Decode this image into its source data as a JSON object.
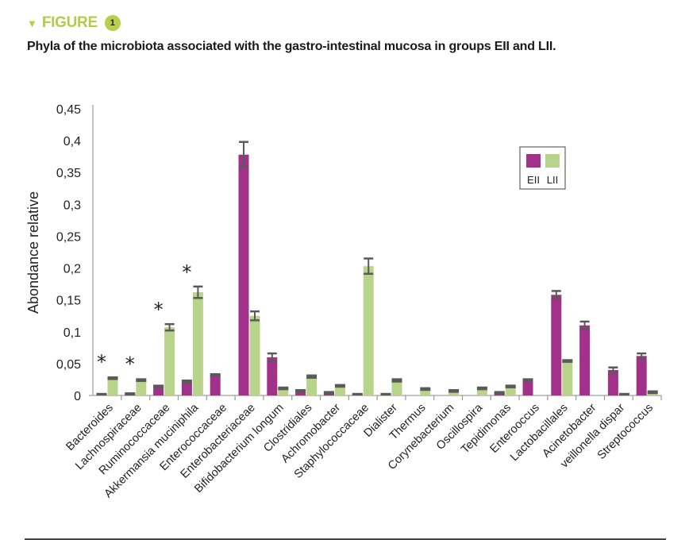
{
  "figure": {
    "label": "FIGURE",
    "number": "1",
    "marker_icon": "triangle-down-icon",
    "accent_color": "#b5c94a"
  },
  "chart_data": {
    "type": "bar",
    "title": "Phyla of the microbiota associated with the gastro-intestinal mucosa in groups EII and LII.",
    "xlabel": "",
    "ylabel": "Abondance relative",
    "ylim": [
      0,
      0.45
    ],
    "yticks": [
      "0",
      "0,05",
      "0,1",
      "0,15",
      "0,2",
      "0,25",
      "0,3",
      "0,35",
      "0,4",
      "0,45"
    ],
    "ytick_values": [
      0,
      0.05,
      0.1,
      0.15,
      0.2,
      0.25,
      0.3,
      0.35,
      0.4,
      0.45
    ],
    "grid": false,
    "legend_position": "top-right",
    "categories": [
      "Bacteroides",
      "Lachnospiraceae",
      "Ruminococcaceae",
      "Akkermansia muciniphila",
      "Enterococcaceae",
      "Enterobacteriaceae",
      "Bifidobacterium longum",
      "Clostridiales",
      "Achromobacter",
      "Staphylococcaceae",
      "Dialister",
      "Thermus",
      "Corynebacterium",
      "Oscillospira",
      "Tepidimonas",
      "Enterooccus",
      "Lactobacillales",
      "Acinetobacter",
      "veillonella dispar",
      "Streptococcus"
    ],
    "series": [
      {
        "name": "EII",
        "color": "#a2318a",
        "values": [
          0.002,
          0.003,
          0.015,
          0.022,
          0.033,
          0.378,
          0.06,
          0.008,
          0.005,
          0.002,
          0.002,
          0,
          0,
          0,
          0.005,
          0.025,
          0.158,
          0.11,
          0.04,
          0.062
        ],
        "errors": [
          0.001,
          0.001,
          0.002,
          0.003,
          0.002,
          0.02,
          0.006,
          0.001,
          0.001,
          0.001,
          0.001,
          0,
          0,
          0,
          0.001,
          0.002,
          0.006,
          0.006,
          0.004,
          0.004
        ]
      },
      {
        "name": "LII",
        "color": "#b8d48a",
        "values": [
          0.028,
          0.025,
          0.107,
          0.162,
          0,
          0.125,
          0.012,
          0.03,
          0.016,
          0.203,
          0.024,
          0.011,
          0.008,
          0.012,
          0.015,
          0,
          0.055,
          0,
          0.002,
          0.006
        ],
        "errors": [
          0.002,
          0.002,
          0.005,
          0.009,
          0,
          0.007,
          0.002,
          0.003,
          0.002,
          0.012,
          0.003,
          0.002,
          0.002,
          0.002,
          0.002,
          0,
          0,
          0,
          0.001,
          0.002
        ]
      }
    ],
    "annotations": [
      {
        "category": "Bacteroides",
        "text": "*"
      },
      {
        "category": "Lachnospiraceae",
        "text": "*"
      },
      {
        "category": "Ruminococcaceae",
        "text": "*"
      },
      {
        "category": "Akkermansia muciniphila",
        "text": "*"
      }
    ],
    "legend": [
      "EII",
      "LII"
    ]
  }
}
